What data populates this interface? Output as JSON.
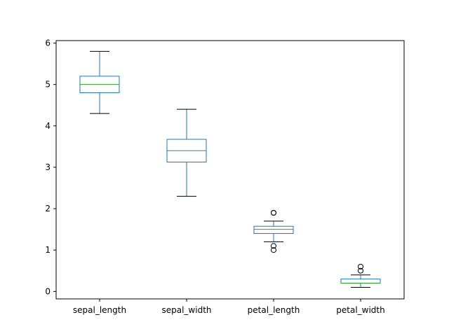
{
  "chart_data": {
    "type": "box",
    "title": "",
    "xlabel": "",
    "ylabel": "",
    "ylim": [
      -0.18,
      6.06
    ],
    "yticks": [
      0,
      1,
      2,
      3,
      4,
      5,
      6
    ],
    "grid": false,
    "legend": "none",
    "colors": {
      "box": "#1f77b4",
      "median": "#2ca02c",
      "cap": "#000000",
      "flier": "#000000"
    },
    "categories": [
      "sepal_length",
      "sepal_width",
      "petal_length",
      "petal_width"
    ],
    "boxes": [
      {
        "name": "sepal_length",
        "whisker_low": 4.3,
        "q1": 4.8,
        "median": 5.0,
        "q3": 5.2,
        "whisker_high": 5.8,
        "fliers": []
      },
      {
        "name": "sepal_width",
        "whisker_low": 2.3,
        "q1": 3.125,
        "median": 3.4,
        "q3": 3.675,
        "whisker_high": 4.4,
        "fliers": []
      },
      {
        "name": "petal_length",
        "whisker_low": 1.2,
        "q1": 1.4,
        "median": 1.5,
        "q3": 1.575,
        "whisker_high": 1.7,
        "fliers": [
          1.9,
          1.9,
          1.1,
          1.0
        ]
      },
      {
        "name": "petal_width",
        "whisker_low": 0.1,
        "q1": 0.2,
        "median": 0.2,
        "q3": 0.3,
        "whisker_high": 0.4,
        "fliers": [
          0.6,
          0.5
        ]
      }
    ]
  }
}
